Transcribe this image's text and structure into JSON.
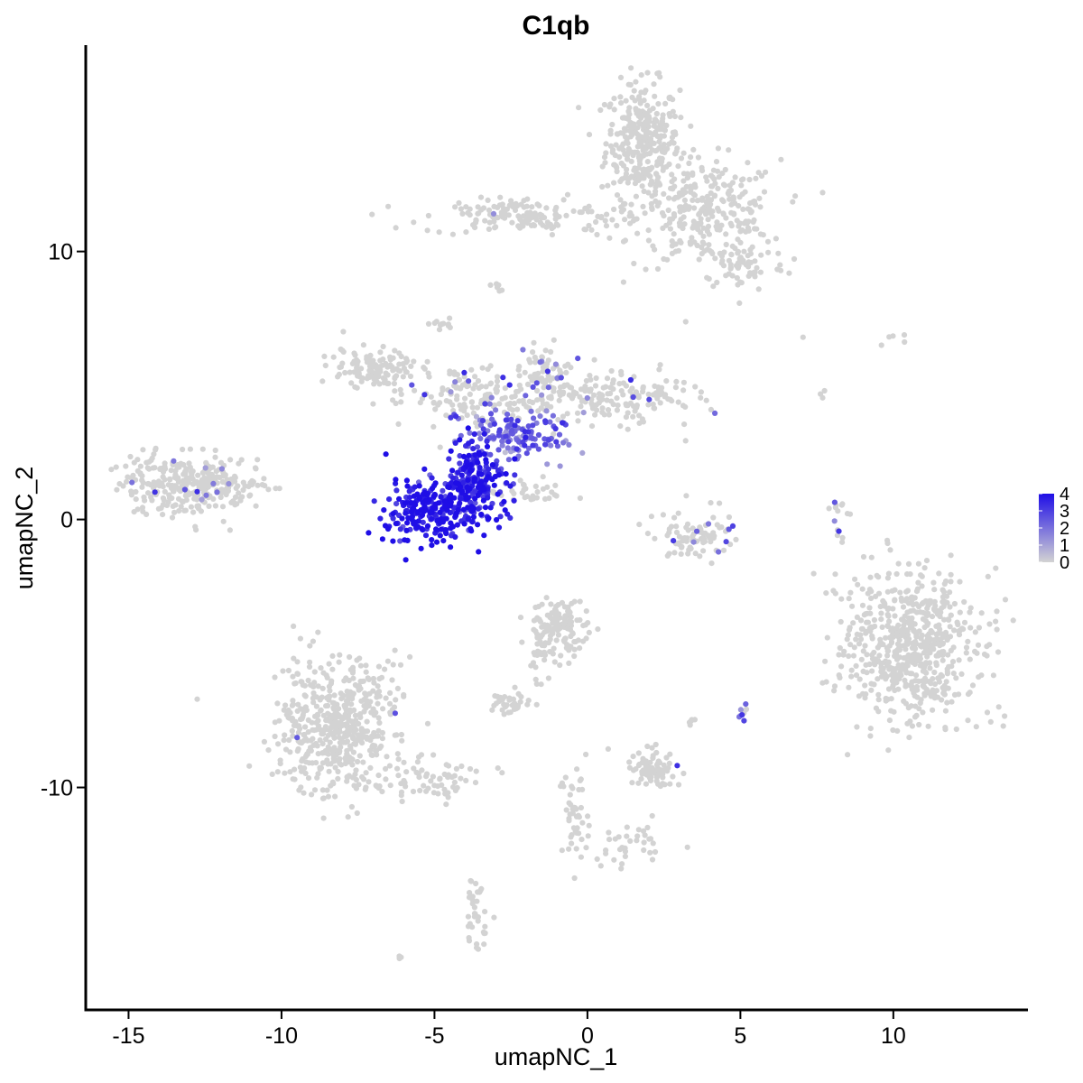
{
  "chart_data": {
    "type": "scatter",
    "title": "C1qb",
    "xlabel": "umapNC_1",
    "ylabel": "umapNC_2",
    "xlim": [
      -16.4,
      14.4
    ],
    "ylim": [
      -18.3,
      17.7
    ],
    "x_ticks": [
      -15,
      -10,
      -5,
      0,
      5,
      10
    ],
    "x_tick_labels": [
      "-15",
      "-10",
      "-5",
      "0",
      "5",
      "10"
    ],
    "y_ticks": [
      -10,
      0,
      10
    ],
    "y_tick_labels": [
      "-10",
      "0",
      "10"
    ],
    "grid": false,
    "legend": {
      "placement": "right",
      "labels": [
        "4",
        "3",
        "2",
        "1",
        "0"
      ],
      "values": [
        4,
        3,
        2,
        1,
        0
      ],
      "color_low": "#d3d3d3",
      "color_high": "#1f0ee6"
    },
    "point_color_low": "#d3d3d3",
    "point_color_high": "#1f0ee6",
    "clusters": [
      {
        "name": "",
        "x": 1.8,
        "y": 14.1,
        "sx": 0.6,
        "sy": 1.1,
        "n": 320,
        "expr": 0
      },
      {
        "name": "",
        "x": 3.9,
        "y": 11.4,
        "sx": 1.2,
        "sy": 1.0,
        "n": 280,
        "expr": 0
      },
      {
        "name": "",
        "x": 5.1,
        "y": 9.5,
        "sx": 0.7,
        "sy": 0.5,
        "n": 60,
        "expr": 0
      },
      {
        "name": "",
        "x": -1.8,
        "y": 11.3,
        "sx": 1.8,
        "sy": 0.35,
        "n": 110,
        "expr": 0
      },
      {
        "name": "",
        "x": -3.0,
        "y": 11.5,
        "sx": 0.6,
        "sy": 0.3,
        "n": 40,
        "expr": 0.05
      },
      {
        "name": "",
        "x": -2.9,
        "y": 8.6,
        "sx": 0.12,
        "sy": 0.12,
        "n": 6,
        "expr": 0
      },
      {
        "name": "",
        "x": -4.7,
        "y": 7.3,
        "sx": 0.2,
        "sy": 0.15,
        "n": 12,
        "expr": 0
      },
      {
        "name": "",
        "x": -6.9,
        "y": 5.6,
        "sx": 0.7,
        "sy": 0.4,
        "n": 120,
        "expr": 0
      },
      {
        "name": "",
        "x": -1.4,
        "y": 5.5,
        "sx": 0.5,
        "sy": 0.5,
        "n": 60,
        "expr": 0.08
      },
      {
        "name": "",
        "x": 0.8,
        "y": 4.6,
        "sx": 1.4,
        "sy": 0.5,
        "n": 180,
        "expr": 0.03
      },
      {
        "name": "",
        "x": -3.4,
        "y": 4.5,
        "sx": 1.2,
        "sy": 0.6,
        "n": 150,
        "expr": 0.08
      },
      {
        "name": "",
        "x": -2.4,
        "y": 3.0,
        "sx": 0.8,
        "sy": 0.5,
        "n": 130,
        "expr": 2.2
      },
      {
        "name": "",
        "x": -3.6,
        "y": 1.5,
        "sx": 0.55,
        "sy": 0.8,
        "n": 200,
        "expr": 3.6
      },
      {
        "name": "",
        "x": -5.2,
        "y": 0.3,
        "sx": 0.7,
        "sy": 0.6,
        "n": 240,
        "expr": 3.9
      },
      {
        "name": "",
        "x": -1.9,
        "y": 1.0,
        "sx": 0.7,
        "sy": 0.25,
        "n": 35,
        "expr": 0
      },
      {
        "name": "",
        "x": -12.9,
        "y": 1.3,
        "sx": 1.1,
        "sy": 0.55,
        "n": 330,
        "expr": 0.02
      },
      {
        "name": "",
        "x": 3.5,
        "y": -0.6,
        "sx": 0.65,
        "sy": 0.45,
        "n": 90,
        "expr": 0.05
      },
      {
        "name": "",
        "x": 8.2,
        "y": 0.2,
        "sx": 0.15,
        "sy": 0.45,
        "n": 14,
        "expr": 0.2
      },
      {
        "name": "",
        "x": 10.6,
        "y": -4.8,
        "sx": 1.1,
        "sy": 1.4,
        "n": 620,
        "expr": 0
      },
      {
        "name": "",
        "x": -0.9,
        "y": -4.1,
        "sx": 0.5,
        "sy": 0.55,
        "n": 130,
        "expr": 0
      },
      {
        "name": "",
        "x": -1.6,
        "y": -5.3,
        "sx": 0.15,
        "sy": 0.6,
        "n": 14,
        "expr": 0
      },
      {
        "name": "",
        "x": -2.5,
        "y": -6.8,
        "sx": 0.3,
        "sy": 0.2,
        "n": 35,
        "expr": 0
      },
      {
        "name": "",
        "x": -8.2,
        "y": -7.7,
        "sx": 0.95,
        "sy": 1.3,
        "n": 520,
        "expr": 0.01
      },
      {
        "name": "",
        "x": -5.3,
        "y": -9.7,
        "sx": 1.0,
        "sy": 0.35,
        "n": 70,
        "expr": 0
      },
      {
        "name": "",
        "x": 2.2,
        "y": -9.3,
        "sx": 0.45,
        "sy": 0.35,
        "n": 75,
        "expr": 0.02
      },
      {
        "name": "",
        "x": 3.4,
        "y": -7.6,
        "sx": 0.1,
        "sy": 0.1,
        "n": 5,
        "expr": 0
      },
      {
        "name": "",
        "x": 5.1,
        "y": -7.2,
        "sx": 0.12,
        "sy": 0.2,
        "n": 8,
        "expr": 0.8
      },
      {
        "name": "",
        "x": -0.4,
        "y": -11.0,
        "sx": 0.25,
        "sy": 0.9,
        "n": 45,
        "expr": 0
      },
      {
        "name": "",
        "x": 1.2,
        "y": -12.1,
        "sx": 0.9,
        "sy": 0.35,
        "n": 40,
        "expr": 0
      },
      {
        "name": "",
        "x": -3.6,
        "y": -14.8,
        "sx": 0.2,
        "sy": 0.7,
        "n": 35,
        "expr": 0.05
      },
      {
        "name": "",
        "x": -6.1,
        "y": -16.3,
        "sx": 0.08,
        "sy": 0.08,
        "n": 3,
        "expr": 0
      },
      {
        "name": "",
        "x": 9.9,
        "y": 6.8,
        "sx": 0.3,
        "sy": 0.15,
        "n": 5,
        "expr": 0
      },
      {
        "name": "",
        "x": 7.0,
        "y": 6.9,
        "sx": 0.05,
        "sy": 0.05,
        "n": 1,
        "expr": 0
      },
      {
        "name": "",
        "x": 7.7,
        "y": 4.7,
        "sx": 0.05,
        "sy": 0.15,
        "n": 3,
        "expr": 0
      }
    ]
  }
}
